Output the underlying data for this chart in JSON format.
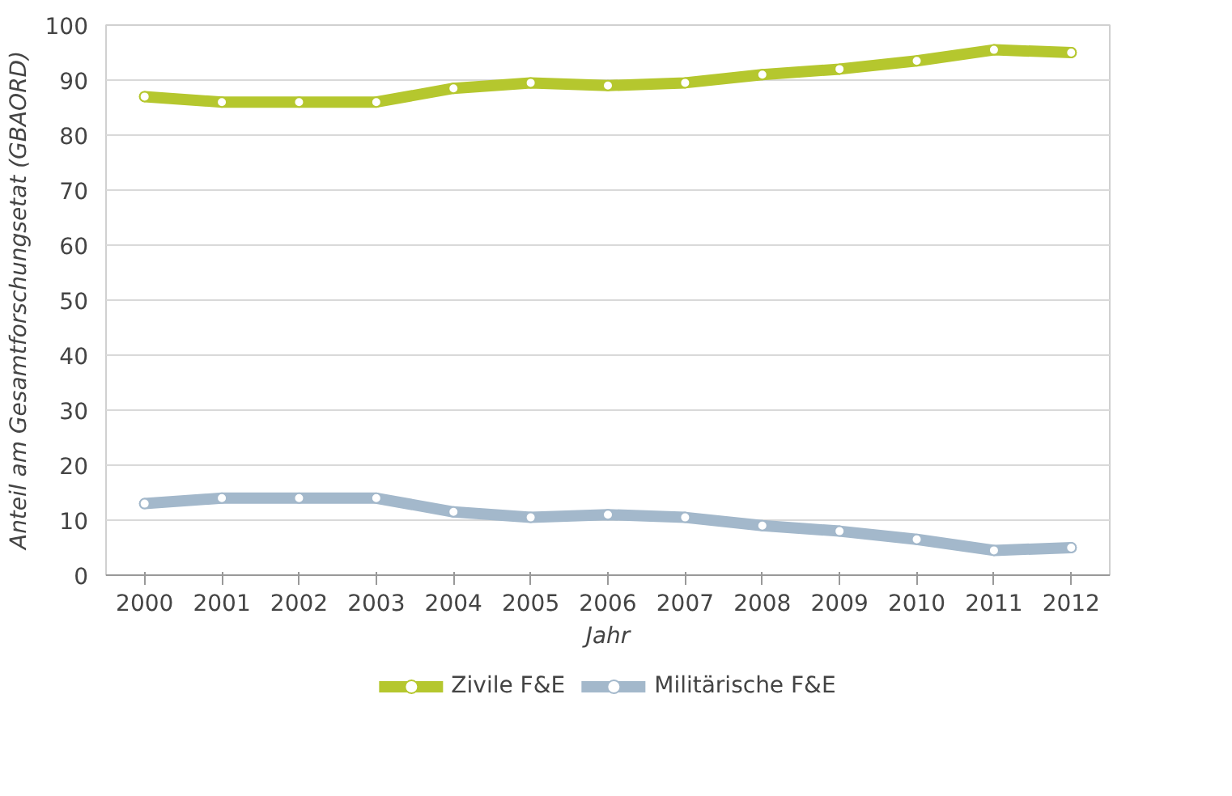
{
  "chart_data": {
    "type": "line",
    "xlabel": "Jahr",
    "ylabel": "Anteil am Gesamtforschungsetat (GBAORD)",
    "categories": [
      "2000",
      "2001",
      "2002",
      "2003",
      "2004",
      "2005",
      "2006",
      "2007",
      "2008",
      "2009",
      "2010",
      "2011",
      "2012"
    ],
    "series": [
      {
        "name": "Zivile F&E",
        "color": "#b5c72e",
        "values": [
          87,
          86,
          86,
          86,
          88.5,
          89.5,
          89,
          89.5,
          91,
          92,
          93.5,
          95.5,
          95
        ]
      },
      {
        "name": "Militärische F&E",
        "color": "#a3b8cb",
        "values": [
          13,
          14,
          14,
          14,
          11.5,
          10.5,
          11,
          10.5,
          9,
          8,
          6.5,
          4.5,
          5
        ]
      }
    ],
    "ylim": [
      0,
      100
    ],
    "yticks": [
      0,
      10,
      20,
      30,
      40,
      50,
      60,
      70,
      80,
      90,
      100
    ],
    "grid": "y",
    "legend": "bottom",
    "marker": "circle",
    "line_style": "solid"
  }
}
